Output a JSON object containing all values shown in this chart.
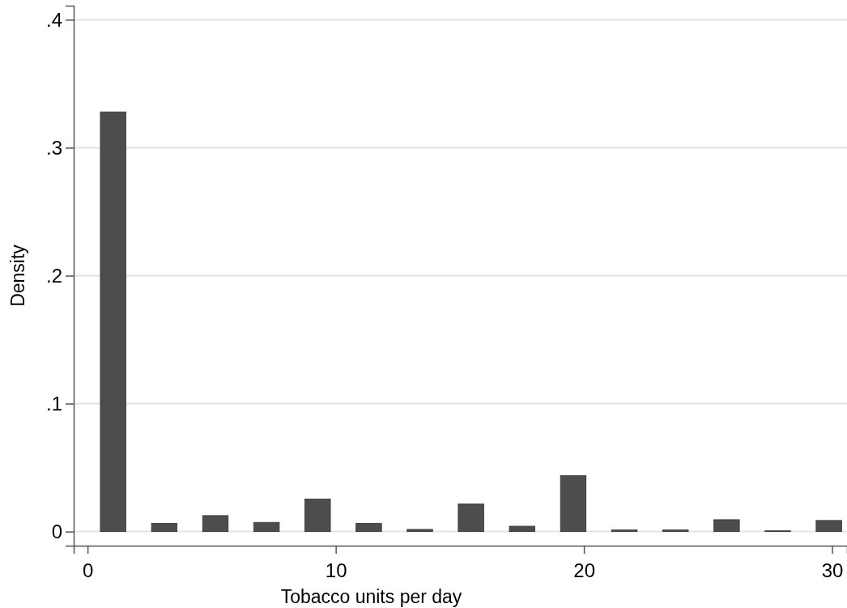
{
  "chart_data": {
    "type": "histogram",
    "xlabel": "Tobacco units per day",
    "ylabel": "Density",
    "bins": [
      0,
      2.06,
      4.12,
      6.18,
      8.24,
      10.3,
      12.36,
      14.42,
      16.48,
      18.54,
      20.6,
      22.66,
      24.72,
      26.78,
      28.84,
      30.9
    ],
    "values": [
      0.328,
      0.0065,
      0.0125,
      0.0072,
      0.0255,
      0.0065,
      0.0017,
      0.0217,
      0.0042,
      0.0437,
      0.0013,
      0.0013,
      0.0093,
      0.0006,
      0.0087
    ],
    "color": "#4d4d4d",
    "xlim": [
      -0.56,
      30.6
    ],
    "ylim": [
      -0.011,
      0.411
    ],
    "xticks": [
      0,
      10,
      20,
      30
    ],
    "yticks": [
      0,
      {
        "value": 0.1,
        "label": ".1"
      },
      {
        "value": 0.2,
        "label": ".2"
      },
      {
        "value": 0.3,
        "label": ".3"
      },
      {
        "value": 0.4,
        "label": ".4"
      }
    ],
    "grid": "y"
  }
}
